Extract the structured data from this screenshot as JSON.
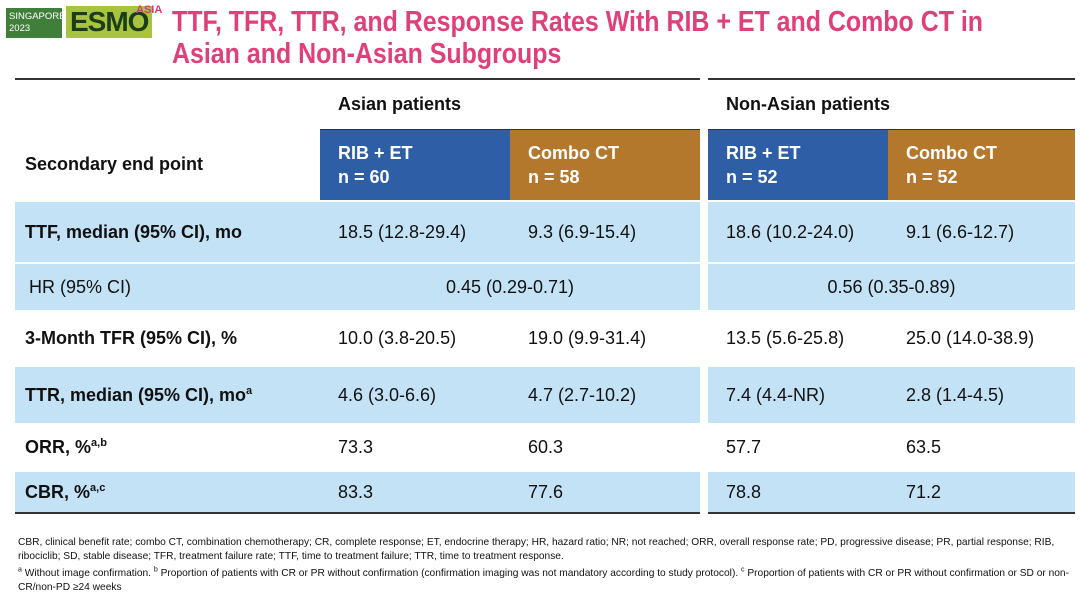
{
  "header": {
    "event": [
      "SINGAPORE",
      "2023"
    ],
    "logo": "ESMO",
    "logo_suffix": "ASIA",
    "title": [
      "TTF, TFR, TTR, and Response Rates With RIB + ET and Combo CT in",
      "Asian and Non-Asian Subgroups"
    ]
  },
  "table": {
    "row_header": "Secondary end point",
    "groups": [
      "Asian patients",
      "Non-Asian patients"
    ],
    "columns": [
      {
        "label": "RIB + ET",
        "n": "n = 60"
      },
      {
        "label": "Combo CT",
        "n": "n = 58"
      },
      {
        "label": "RIB + ET",
        "n": "n = 52"
      },
      {
        "label": "Combo CT",
        "n": "n = 52"
      }
    ],
    "rows": [
      {
        "label": "TTF, median (95% CI), mo",
        "values": [
          "18.5 (12.8-29.4)",
          "9.3 (6.9-15.4)",
          "18.6 (10.2-24.0)",
          "9.1 (6.6-12.7)"
        ]
      },
      {
        "label": "HR (95% CI)",
        "merged": [
          "0.45 (0.29-0.71)",
          "0.56 (0.35-0.89)"
        ]
      },
      {
        "label": "3-Month TFR (95% CI), %",
        "values": [
          "10.0 (3.8-20.5)",
          "19.0 (9.9-31.4)",
          "13.5 (5.6-25.8)",
          "25.0 (14.0-38.9)"
        ]
      },
      {
        "label": "TTR, median (95% CI), mo",
        "sup": "a",
        "values": [
          "4.6 (3.0-6.6)",
          "4.7 (2.7-10.2)",
          "7.4 (4.4-NR)",
          "2.8 (1.4-4.5)"
        ]
      },
      {
        "label": "ORR, %",
        "sup": "a,b",
        "values": [
          "73.3",
          "60.3",
          "57.7",
          "63.5"
        ]
      },
      {
        "label": "CBR, %",
        "sup": "a,c",
        "values": [
          "83.3",
          "77.6",
          "78.8",
          "71.2"
        ]
      }
    ]
  },
  "footnotes": {
    "abbreviations": "CBR, clinical benefit rate; combo CT, combination chemotherapy; CR, complete response; ET, endocrine therapy; HR, hazard ratio; NR; not reached; ORR, overall response rate; PD, progressive disease; PR, partial response; RIB, ribociclib; SD, stable disease; TFR, treatment failure rate; TTF, time to treatment failure; TTR, time to treatment response.",
    "notes": [
      {
        "mark": "a",
        "text": "Without image confirmation."
      },
      {
        "mark": "b",
        "text": "Proportion of patients with CR or PR without confirmation (confirmation imaging was not mandatory according to study protocol)."
      },
      {
        "mark": "c",
        "text": "Proportion of patients with CR or PR without confirmation or SD or non-CR/non-PD ≥24 weeks"
      }
    ]
  }
}
